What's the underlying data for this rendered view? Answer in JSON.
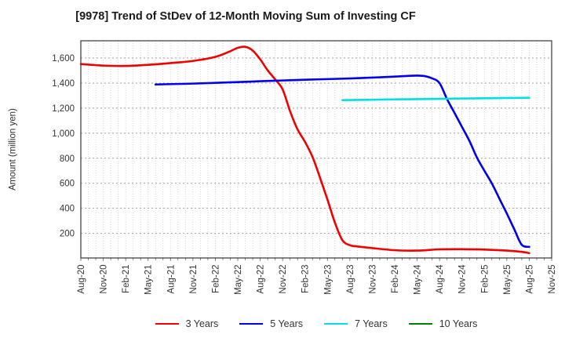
{
  "chart_data": {
    "type": "line",
    "title": "[9978]  Trend of StDev of 12-Month Moving Sum of Investing CF",
    "ylabel": "Amount (million yen)",
    "ylim": [
      0,
      1733
    ],
    "yticks": [
      200,
      400,
      600,
      800,
      1000,
      1200,
      1400,
      1600
    ],
    "x_tick_labels": [
      "Aug-20",
      "Nov-20",
      "Feb-21",
      "May-21",
      "Aug-21",
      "Nov-21",
      "Feb-22",
      "May-22",
      "Aug-22",
      "Nov-22",
      "Feb-23",
      "May-23",
      "Aug-23",
      "Nov-23",
      "Feb-24",
      "May-24",
      "Aug-24",
      "Nov-24",
      "Feb-25",
      "May-25",
      "Aug-25",
      "Nov-25"
    ],
    "x_minor_tick_unit": "month",
    "grid": true,
    "legend_position": "bottom-center",
    "colors": {
      "grid_vertical": "#c9c9c9",
      "grid_horizontal": "#9f9f9f",
      "axis_border": "#444444",
      "tick_text": "#333333",
      "title_text": "#1a1a1a"
    },
    "series": [
      {
        "name": "3 Years",
        "color": "#f10000",
        "points": [
          [
            "Aug-20",
            1552
          ],
          [
            "Nov-20",
            1540
          ],
          [
            "Feb-21",
            1537
          ],
          [
            "May-21",
            1546
          ],
          [
            "Aug-21",
            1560
          ],
          [
            "Nov-21",
            1577
          ],
          [
            "Feb-22",
            1610
          ],
          [
            "Apr-22",
            1655
          ],
          [
            "May-22",
            1682
          ],
          [
            "Jun-22",
            1690
          ],
          [
            "Jul-22",
            1660
          ],
          [
            "Aug-22",
            1590
          ],
          [
            "Sep-22",
            1502
          ],
          [
            "Oct-22",
            1430
          ],
          [
            "Nov-22",
            1350
          ],
          [
            "Dec-22",
            1175
          ],
          [
            "Jan-23",
            1030
          ],
          [
            "Feb-23",
            930
          ],
          [
            "Mar-23",
            810
          ],
          [
            "Apr-23",
            645
          ],
          [
            "May-23",
            470
          ],
          [
            "Jun-23",
            285
          ],
          [
            "Jul-23",
            145
          ],
          [
            "Aug-23",
            105
          ],
          [
            "Sep-23",
            95
          ],
          [
            "Nov-23",
            82
          ],
          [
            "Feb-24",
            65
          ],
          [
            "May-24",
            62
          ],
          [
            "Aug-24",
            72
          ],
          [
            "Nov-24",
            73
          ],
          [
            "Feb-25",
            70
          ],
          [
            "May-25",
            62
          ],
          [
            "Jul-25",
            52
          ],
          [
            "Aug-25",
            42
          ]
        ]
      },
      {
        "name": "5 Years",
        "color": "#0000ee",
        "points": [
          [
            "Jun-21",
            1389
          ],
          [
            "Aug-21",
            1392
          ],
          [
            "Nov-21",
            1396
          ],
          [
            "Feb-22",
            1402
          ],
          [
            "May-22",
            1408
          ],
          [
            "Aug-22",
            1415
          ],
          [
            "Nov-22",
            1421
          ],
          [
            "Feb-23",
            1427
          ],
          [
            "May-23",
            1432
          ],
          [
            "Aug-23",
            1437
          ],
          [
            "Nov-23",
            1444
          ],
          [
            "Feb-24",
            1452
          ],
          [
            "Apr-24",
            1458
          ],
          [
            "May-24",
            1460
          ],
          [
            "Jun-24",
            1456
          ],
          [
            "Jul-24",
            1438
          ],
          [
            "Aug-24",
            1400
          ],
          [
            "Sep-24",
            1272
          ],
          [
            "Oct-24",
            1162
          ],
          [
            "Nov-24",
            1050
          ],
          [
            "Dec-24",
            938
          ],
          [
            "Jan-25",
            805
          ],
          [
            "Feb-25",
            700
          ],
          [
            "Mar-25",
            598
          ],
          [
            "Apr-25",
            478
          ],
          [
            "May-25",
            358
          ],
          [
            "Jun-25",
            232
          ],
          [
            "Jul-25",
            108
          ],
          [
            "Aug-25",
            92
          ]
        ]
      },
      {
        "name": "7 Years",
        "color": "#00e0e0",
        "points": [
          [
            "Jul-23",
            1264
          ],
          [
            "Aug-23",
            1265
          ],
          [
            "Nov-23",
            1267
          ],
          [
            "Feb-24",
            1270
          ],
          [
            "May-24",
            1272
          ],
          [
            "Aug-24",
            1274
          ],
          [
            "Nov-24",
            1277
          ],
          [
            "Feb-25",
            1279
          ],
          [
            "May-25",
            1281
          ],
          [
            "Aug-25",
            1283
          ]
        ]
      },
      {
        "name": "10 Years",
        "color": "#008000",
        "points": []
      }
    ]
  }
}
